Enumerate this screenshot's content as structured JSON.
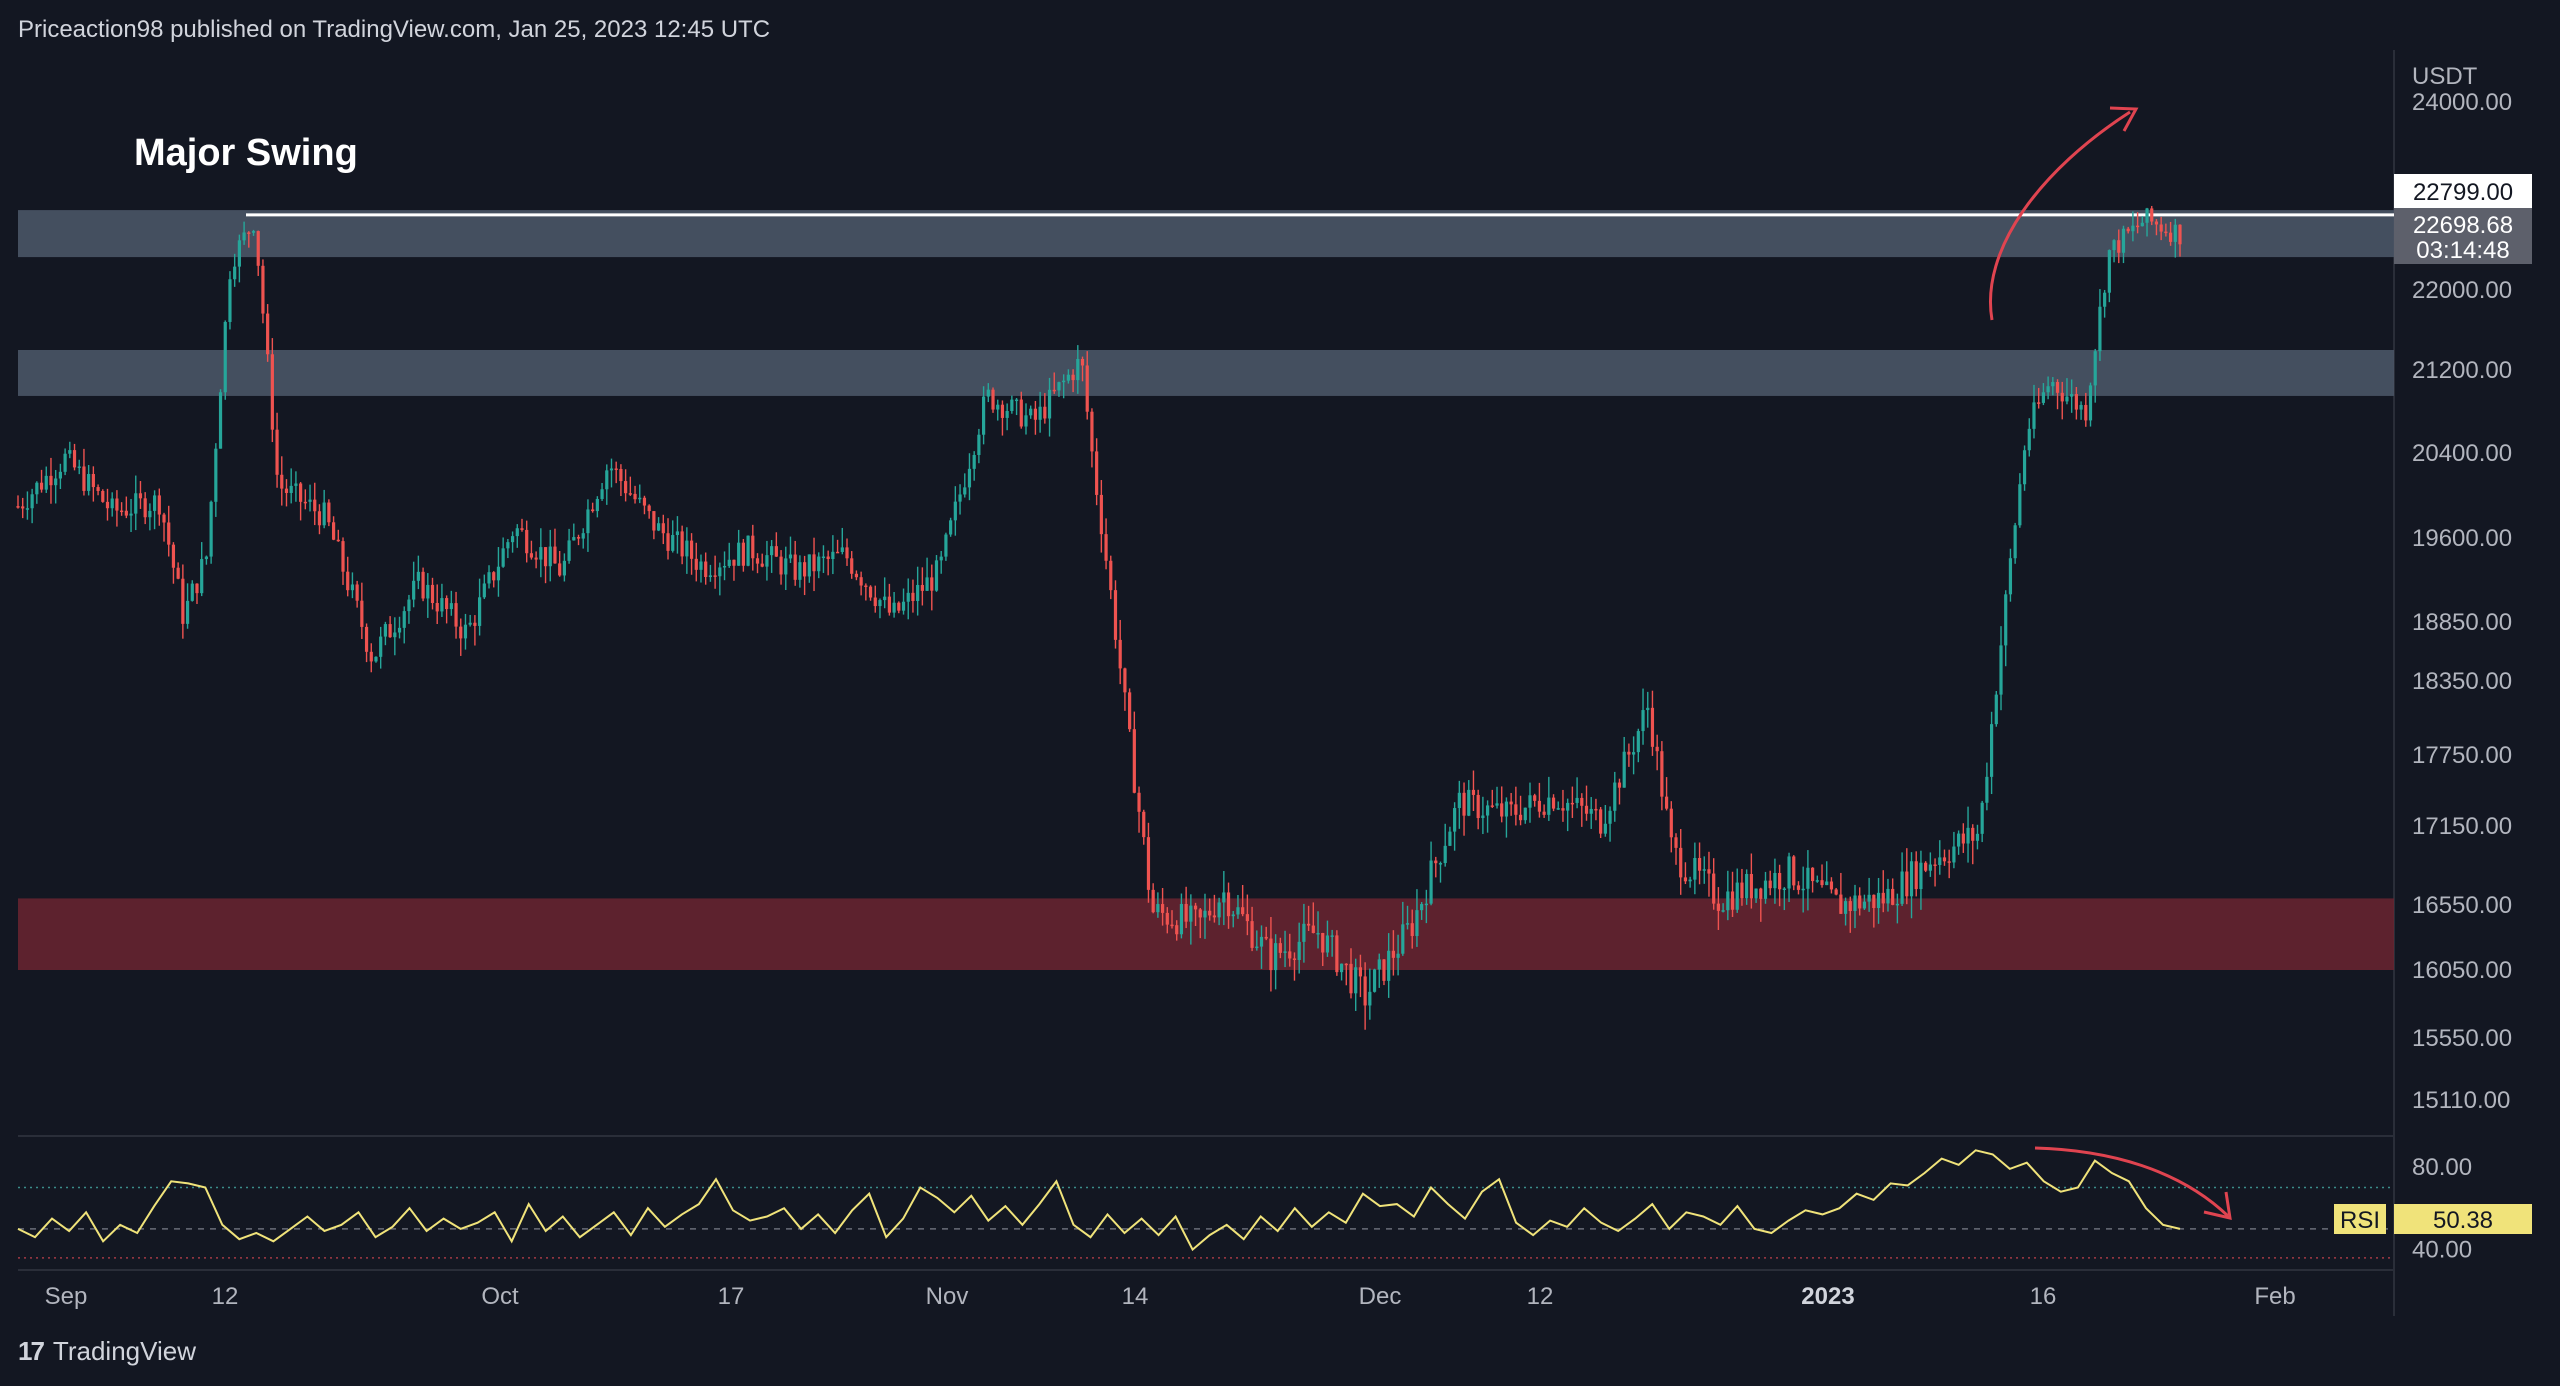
{
  "header": {
    "text": "Priceaction98 published on TradingView.com, Jan 25, 2023 12:45 UTC"
  },
  "brand": {
    "name": "TradingView"
  },
  "chart_data": [
    {
      "type": "candlestick",
      "title": "",
      "annotation": "Major Swing",
      "currency": "USDT",
      "y_ticks": [
        24000,
        22000,
        21200,
        20400,
        19600,
        18850,
        18350,
        17750,
        17150,
        16550,
        16050,
        15550,
        15110
      ],
      "y_tick_labels": [
        "24000.00",
        "22000.00",
        "21200.00",
        "20400.00",
        "19600.00",
        "18850.00",
        "18350.00",
        "17750.00",
        "17150.00",
        "16550.00",
        "16050.00",
        "15550.00",
        "15110.00"
      ],
      "x_tick_labels": [
        "Sep",
        "12",
        "Oct",
        "17",
        "Nov",
        "14",
        "Dec",
        "12",
        "2023",
        "16",
        "Feb"
      ],
      "price_labels": {
        "level": "22799.00",
        "last": "22698.68",
        "countdown": "03:14:48"
      },
      "levels": {
        "resistance_line": 22799
      },
      "zones": [
        {
          "kind": "resistance",
          "from": 22350,
          "to": 22850,
          "color": "#4a5566"
        },
        {
          "kind": "resistance",
          "from": 20950,
          "to": 21400,
          "color": "#4a5566"
        },
        {
          "kind": "support",
          "from": 16050,
          "to": 16600,
          "color": "#6b2430"
        }
      ],
      "series_path": [
        [
          0,
          19900
        ],
        [
          0.02,
          20350
        ],
        [
          0.04,
          19850
        ],
        [
          0.06,
          19950
        ],
        [
          0.07,
          18900
        ],
        [
          0.08,
          19450
        ],
        [
          0.09,
          22300
        ],
        [
          0.1,
          22750
        ],
        [
          0.11,
          20100
        ],
        [
          0.13,
          19800
        ],
        [
          0.15,
          18550
        ],
        [
          0.17,
          19200
        ],
        [
          0.19,
          18750
        ],
        [
          0.21,
          19700
        ],
        [
          0.23,
          19300
        ],
        [
          0.25,
          20300
        ],
        [
          0.27,
          19700
        ],
        [
          0.29,
          19350
        ],
        [
          0.31,
          19500
        ],
        [
          0.33,
          19300
        ],
        [
          0.35,
          19450
        ],
        [
          0.37,
          18900
        ],
        [
          0.39,
          19300
        ],
        [
          0.41,
          20950
        ],
        [
          0.43,
          20700
        ],
        [
          0.45,
          21300
        ],
        [
          0.455,
          20300
        ],
        [
          0.47,
          17900
        ],
        [
          0.48,
          16500
        ],
        [
          0.5,
          16400
        ],
        [
          0.51,
          16650
        ],
        [
          0.53,
          16150
        ],
        [
          0.55,
          16350
        ],
        [
          0.57,
          15850
        ],
        [
          0.59,
          16400
        ],
        [
          0.61,
          17350
        ],
        [
          0.63,
          17250
        ],
        [
          0.65,
          17400
        ],
        [
          0.67,
          17200
        ],
        [
          0.69,
          18150
        ],
        [
          0.7,
          16950
        ],
        [
          0.72,
          16600
        ],
        [
          0.75,
          16800
        ],
        [
          0.77,
          16550
        ],
        [
          0.79,
          16600
        ],
        [
          0.81,
          16900
        ],
        [
          0.83,
          17100
        ],
        [
          0.84,
          18800
        ],
        [
          0.85,
          20600
        ],
        [
          0.86,
          21100
        ],
        [
          0.875,
          20800
        ],
        [
          0.885,
          22400
        ],
        [
          0.9,
          22750
        ],
        [
          0.915,
          22600
        ]
      ]
    },
    {
      "type": "line",
      "indicator": "RSI",
      "value_label": "50.38",
      "y_ticks": [
        80,
        40
      ],
      "y_tick_labels": [
        "80.00",
        "40.00"
      ],
      "ylim": [
        34,
        92
      ],
      "values": [
        50,
        46,
        55,
        49,
        58,
        44,
        52,
        48,
        61,
        73,
        72,
        70,
        52,
        45,
        48,
        44,
        50,
        56,
        49,
        52,
        58,
        46,
        51,
        60,
        49,
        55,
        50,
        53,
        58,
        44,
        62,
        49,
        56,
        46,
        52,
        58,
        47,
        60,
        51,
        57,
        62,
        74,
        59,
        54,
        56,
        60,
        50,
        57,
        48,
        59,
        67,
        46,
        55,
        70,
        65,
        58,
        66,
        54,
        61,
        52,
        62,
        73,
        52,
        46,
        57,
        48,
        55,
        47,
        56,
        40,
        47,
        52,
        45,
        56,
        49,
        60,
        51,
        58,
        53,
        67,
        61,
        62,
        56,
        70,
        62,
        55,
        68,
        74,
        53,
        47,
        54,
        51,
        60,
        53,
        49,
        55,
        62,
        50,
        58,
        56,
        52,
        61,
        50,
        48,
        54,
        59,
        57,
        60,
        67,
        64,
        72,
        71,
        77,
        84,
        81,
        88,
        86,
        79,
        82,
        73,
        68,
        70,
        83,
        77,
        73,
        60,
        52,
        50
      ]
    }
  ]
}
